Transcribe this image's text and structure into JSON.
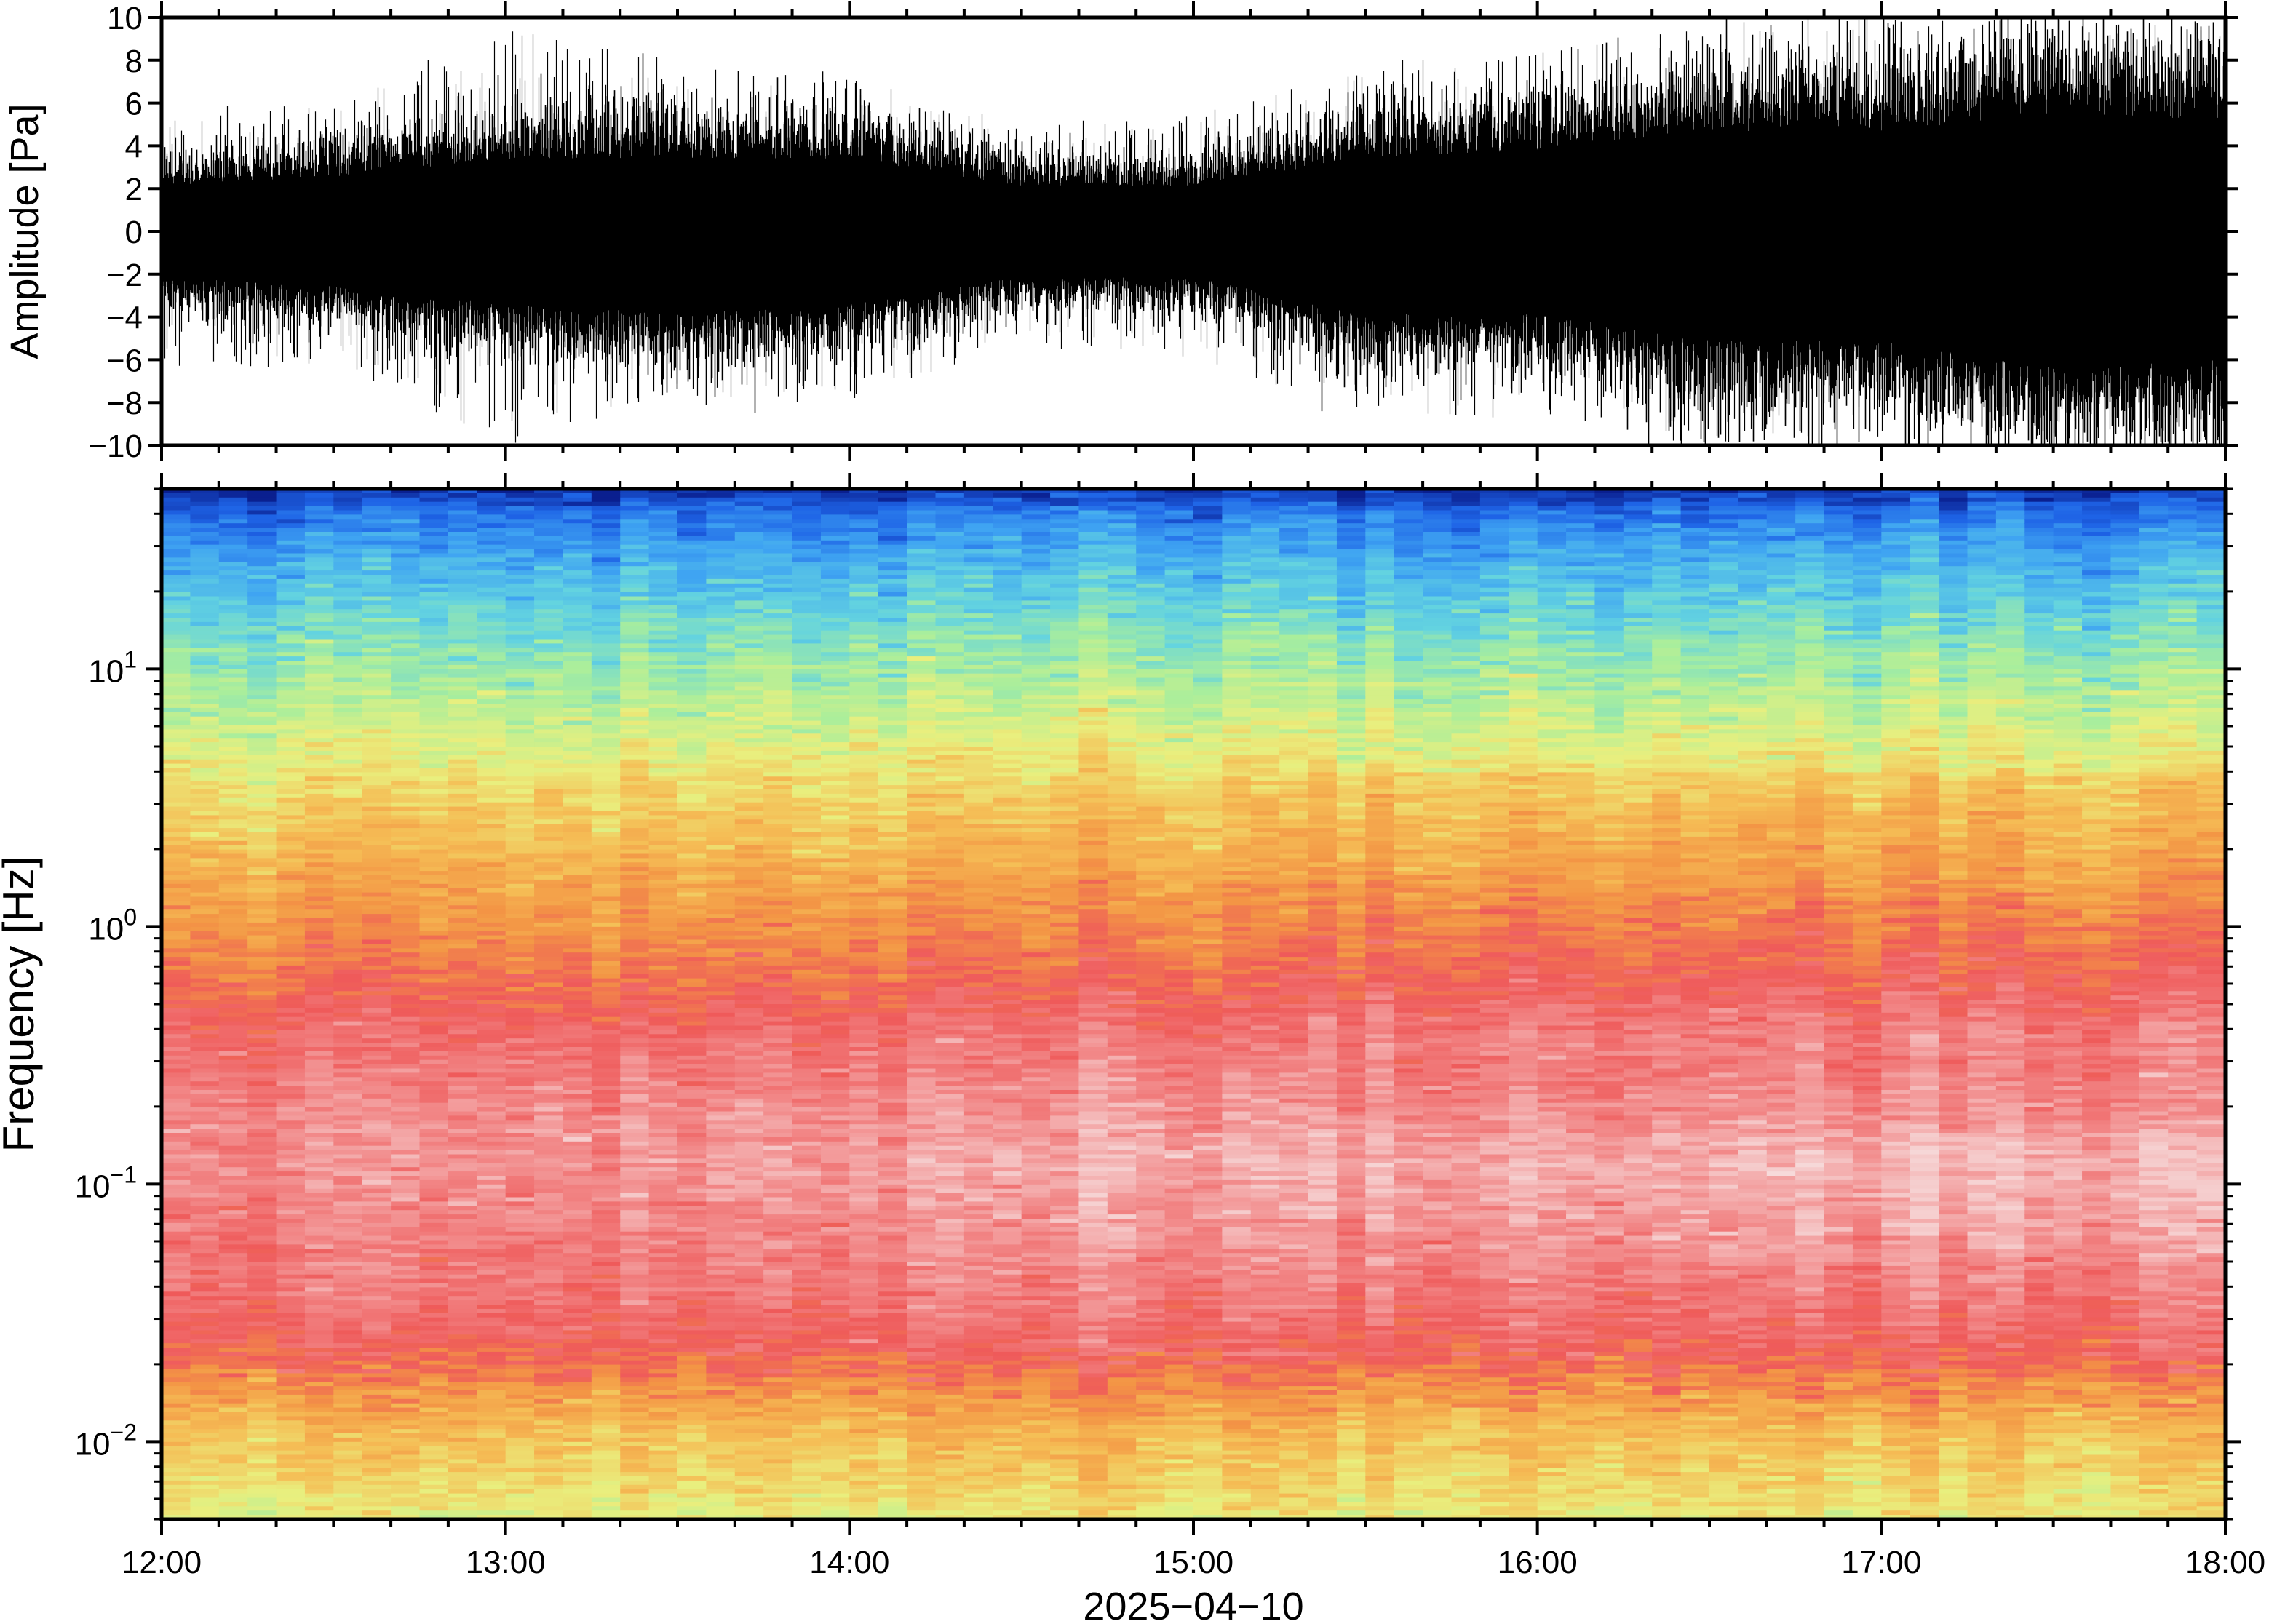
{
  "chart_data": [
    {
      "type": "line",
      "title": "",
      "ylabel": "Amplitude [Pa]",
      "xlabel": "",
      "ylim": [
        -10,
        10
      ],
      "y_ticks": [
        -10,
        -8,
        -6,
        -4,
        -2,
        0,
        2,
        4,
        6,
        8,
        10
      ],
      "y_tick_labels": [
        "−10",
        "−8",
        "−6",
        "−4",
        "−2",
        "0",
        "2",
        "4",
        "6",
        "8",
        "10"
      ],
      "xlim": [
        "12:00",
        "18:00"
      ],
      "x_ticks": [
        "12:00",
        "13:00",
        "14:00",
        "15:00",
        "16:00",
        "17:00",
        "18:00"
      ],
      "x_minor_tick_interval_minutes": 10,
      "grid": false,
      "series": [
        {
          "color": "#000000",
          "envelope": {
            "x": [
              "12:00",
              "12:30",
              "13:00",
              "13:30",
              "14:00",
              "14:30",
              "15:00",
              "15:30",
              "16:00",
              "16:30",
              "17:00",
              "17:30",
              "18:00"
            ],
            "upper_typical": [
              2.5,
              3.0,
              4.0,
              4.0,
              4.0,
              2.5,
              2.5,
              4.0,
              4.5,
              5.5,
              5.5,
              6.5,
              6.0
            ],
            "lower_typical": [
              -2.5,
              -3.0,
              -4.0,
              -4.5,
              -4.0,
              -2.5,
              -2.5,
              -4.5,
              -4.5,
              -6.0,
              -6.0,
              -7.5,
              -7.0
            ],
            "peak_max": [
              6,
              6,
              9.5,
              8,
              7.5,
              5,
              5.5,
              8,
              8.5,
              10,
              10,
              10,
              10
            ],
            "peak_min": [
              -6.5,
              -6.5,
              -10,
              -8,
              -8,
              -5.5,
              -6,
              -8.5,
              -9,
              -10,
              -10,
              -10,
              -10
            ]
          }
        }
      ]
    },
    {
      "type": "heatmap",
      "title": "",
      "ylabel": "Frequency [Hz]",
      "xlabel": "2025−04−10",
      "y_scale": "log",
      "ylim": [
        0.005,
        50
      ],
      "y_ticks": [
        0.01,
        0.1,
        1,
        10
      ],
      "y_tick_labels": [
        {
          "base": "10",
          "exp": "−2"
        },
        {
          "base": "10",
          "exp": "−1"
        },
        {
          "base": "10",
          "exp": "0"
        },
        {
          "base": "10",
          "exp": "1"
        }
      ],
      "xlim": [
        "12:00",
        "18:00"
      ],
      "x_ticks": [
        "12:00",
        "13:00",
        "14:00",
        "15:00",
        "16:00",
        "17:00",
        "18:00"
      ],
      "x_minor_tick_interval_minutes": 10,
      "colormap": [
        "#0a1f8f",
        "#1e63e6",
        "#3fa4f2",
        "#63d3e0",
        "#a9ee9c",
        "#e9ef7e",
        "#f5bd55",
        "#f39545",
        "#ef5a5a",
        "#f28b8b",
        "#f5c9c9",
        "#f7dede"
      ],
      "colorbar_shown": false,
      "legend": "none",
      "grid": false
    }
  ]
}
